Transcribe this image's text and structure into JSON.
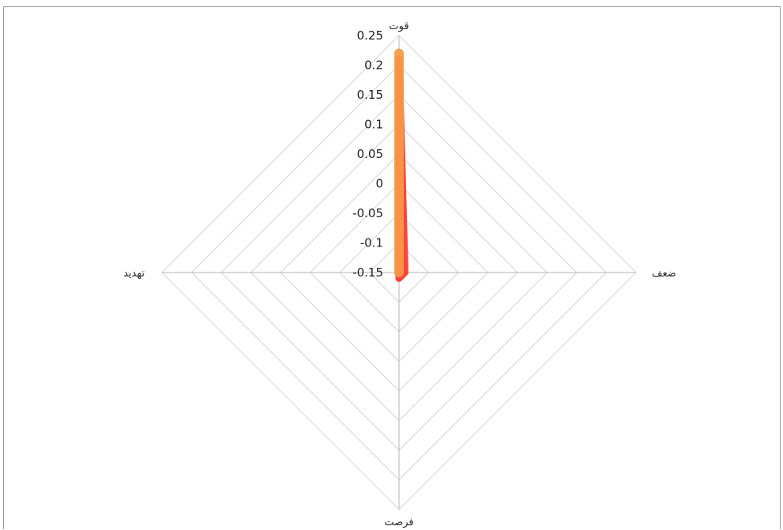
{
  "chart_data": {
    "type": "radar",
    "categories": [
      "قوت",
      "ضعف",
      "فرصت",
      "تهدید"
    ],
    "series": [
      {
        "values": [
          0.21,
          -0.15,
          -0.14,
          -0.16
        ],
        "color": "#ff3b30"
      },
      {
        "values": [
          0.22,
          -0.15,
          -0.15,
          -0.15
        ],
        "color": "#f59a45"
      }
    ],
    "r_ticks": [
      "0.25",
      "0.2",
      "0.15",
      "0.1",
      "0.05",
      "0",
      "-0.05",
      "-0.1",
      "-0.15"
    ],
    "r_range": [
      -0.15,
      0.25
    ],
    "grid": true
  }
}
